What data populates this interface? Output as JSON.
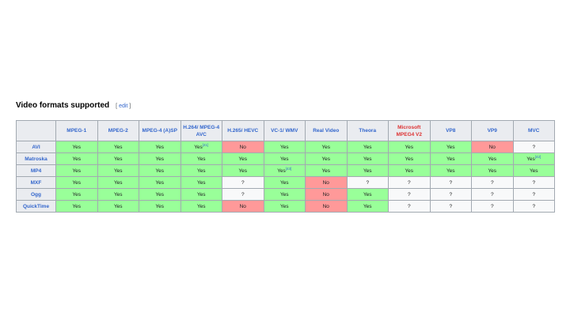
{
  "heading": {
    "title": "Video formats supported",
    "edit_prefix": "[ ",
    "edit_label": "edit",
    "edit_suffix": " ]"
  },
  "columns": [
    {
      "label": "MPEG-1"
    },
    {
      "label": "MPEG-2"
    },
    {
      "label": "MPEG-4 (A)SP"
    },
    {
      "label": "H.264/ MPEG-4 AVC"
    },
    {
      "label": "H.265/ HEVC"
    },
    {
      "label": "VC-1/ WMV"
    },
    {
      "label": "Real Video"
    },
    {
      "label": "Theora"
    },
    {
      "label": "Microsoft MPEG4 V2",
      "red": true
    },
    {
      "label": "VP8"
    },
    {
      "label": "VP9"
    },
    {
      "label": "MVC"
    }
  ],
  "rows": [
    {
      "label": "AVI",
      "cells": [
        {
          "v": "Yes"
        },
        {
          "v": "Yes"
        },
        {
          "v": "Yes"
        },
        {
          "v": "Yes",
          "ref": "[41]"
        },
        {
          "v": "No"
        },
        {
          "v": "Yes"
        },
        {
          "v": "Yes"
        },
        {
          "v": "Yes"
        },
        {
          "v": "Yes"
        },
        {
          "v": "Yes"
        },
        {
          "v": "No"
        },
        {
          "v": "?"
        }
      ]
    },
    {
      "label": "Matroska",
      "cells": [
        {
          "v": "Yes"
        },
        {
          "v": "Yes"
        },
        {
          "v": "Yes"
        },
        {
          "v": "Yes"
        },
        {
          "v": "Yes"
        },
        {
          "v": "Yes"
        },
        {
          "v": "Yes"
        },
        {
          "v": "Yes"
        },
        {
          "v": "Yes"
        },
        {
          "v": "Yes"
        },
        {
          "v": "Yes"
        },
        {
          "v": "Yes",
          "ref": "[42]"
        }
      ]
    },
    {
      "label": "MP4",
      "cells": [
        {
          "v": "Yes"
        },
        {
          "v": "Yes"
        },
        {
          "v": "Yes"
        },
        {
          "v": "Yes"
        },
        {
          "v": "Yes"
        },
        {
          "v": "Yes",
          "ref": "[43]"
        },
        {
          "v": "Yes"
        },
        {
          "v": "Yes"
        },
        {
          "v": "Yes"
        },
        {
          "v": "Yes"
        },
        {
          "v": "Yes"
        },
        {
          "v": "Yes"
        }
      ]
    },
    {
      "label": "MXF",
      "cells": [
        {
          "v": "Yes"
        },
        {
          "v": "Yes"
        },
        {
          "v": "Yes"
        },
        {
          "v": "Yes"
        },
        {
          "v": "?"
        },
        {
          "v": "Yes"
        },
        {
          "v": "No"
        },
        {
          "v": "?"
        },
        {
          "v": "?"
        },
        {
          "v": "?"
        },
        {
          "v": "?"
        },
        {
          "v": "?"
        }
      ]
    },
    {
      "label": "Ogg",
      "cells": [
        {
          "v": "Yes"
        },
        {
          "v": "Yes"
        },
        {
          "v": "Yes"
        },
        {
          "v": "Yes"
        },
        {
          "v": "?"
        },
        {
          "v": "Yes"
        },
        {
          "v": "No"
        },
        {
          "v": "Yes"
        },
        {
          "v": "?"
        },
        {
          "v": "?"
        },
        {
          "v": "?"
        },
        {
          "v": "?"
        }
      ]
    },
    {
      "label": "QuickTime",
      "cells": [
        {
          "v": "Yes"
        },
        {
          "v": "Yes"
        },
        {
          "v": "Yes"
        },
        {
          "v": "Yes"
        },
        {
          "v": "No"
        },
        {
          "v": "Yes"
        },
        {
          "v": "No"
        },
        {
          "v": "Yes"
        },
        {
          "v": "?"
        },
        {
          "v": "?"
        },
        {
          "v": "?"
        },
        {
          "v": "?"
        }
      ]
    }
  ],
  "colors": {
    "yes": "#99ff99",
    "no": "#ff9999",
    "unknown": "#f8f9fa",
    "header": "#eaecf0",
    "link": "#3366cc"
  }
}
